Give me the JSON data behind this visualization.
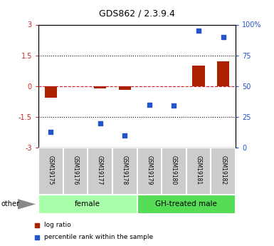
{
  "title": "GDS862 / 2.3.9.4",
  "samples": [
    "GSM19175",
    "GSM19176",
    "GSM19177",
    "GSM19178",
    "GSM19179",
    "GSM19180",
    "GSM19181",
    "GSM19182"
  ],
  "log_ratio": [
    -0.55,
    0.0,
    -0.12,
    -0.18,
    0.0,
    0.0,
    1.0,
    1.2
  ],
  "percentile_rank": [
    13,
    null,
    20,
    10,
    35,
    34,
    95,
    90
  ],
  "groups": [
    {
      "label": "female",
      "start": 0,
      "end": 3,
      "color": "#aaffaa"
    },
    {
      "label": "GH-treated male",
      "start": 4,
      "end": 7,
      "color": "#55dd55"
    }
  ],
  "ylim_left": [
    -3,
    3
  ],
  "ylim_right": [
    0,
    100
  ],
  "yticks_left": [
    -3,
    -1.5,
    0,
    1.5,
    3
  ],
  "yticks_right": [
    0,
    25,
    50,
    75,
    100
  ],
  "ytick_labels_left": [
    "-3",
    "-1.5",
    "0",
    "1.5",
    "3"
  ],
  "ytick_labels_right": [
    "0",
    "25",
    "50",
    "75",
    "100%"
  ],
  "bar_color": "#aa2200",
  "dot_color": "#2255cc",
  "hline_color": "#cc2222",
  "dotted_line_color": "#000000",
  "background_color": "#ffffff",
  "plot_bg_color": "#ffffff",
  "label_color_left": "#cc2222",
  "label_color_right": "#2255cc",
  "other_label": "other",
  "legend_bar_label": "log ratio",
  "legend_dot_label": "percentile rank within the sample",
  "fig_width": 3.85,
  "fig_height": 3.45,
  "cell_color": "#cccccc",
  "cell_border_color": "#ffffff"
}
